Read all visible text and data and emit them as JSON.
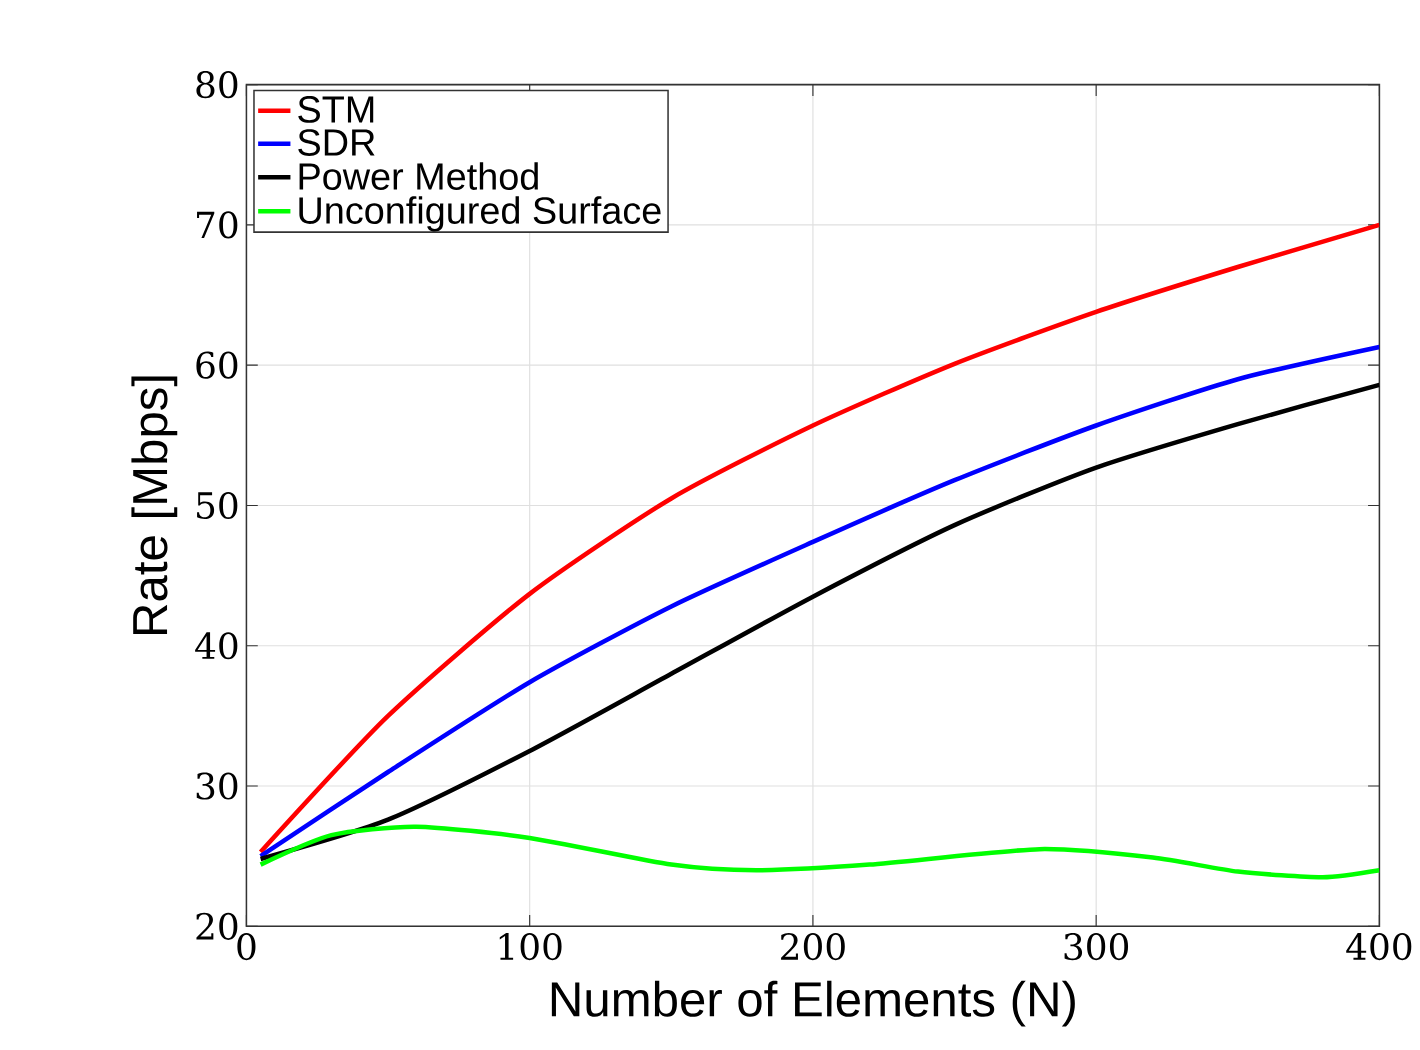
{
  "chart_data": {
    "type": "line",
    "xlabel": "Number of Elements (N)",
    "ylabel": "Rate [Mbps]",
    "x": [
      5,
      50,
      100,
      150,
      200,
      250,
      300,
      350,
      400
    ],
    "series": [
      {
        "name": "STM",
        "color": "#ff0000",
        "values": [
          25.3,
          35.0,
          43.7,
          50.5,
          55.7,
          60.1,
          63.8,
          67.0,
          70.0
        ]
      },
      {
        "name": "SDR",
        "color": "#0000ff",
        "values": [
          25.0,
          31.0,
          37.4,
          42.8,
          47.4,
          51.8,
          55.7,
          59.0,
          61.3
        ]
      },
      {
        "name": "Power Method",
        "color": "#000000",
        "values": [
          24.8,
          27.6,
          32.5,
          38.0,
          43.5,
          48.6,
          52.7,
          55.8,
          58.6
        ]
      },
      {
        "name": "Unconfigured Surface",
        "color": "#00ff00",
        "x": [
          5,
          30,
          60,
          100,
          150,
          180,
          220,
          280,
          320,
          350,
          380,
          400
        ],
        "values": [
          24.4,
          26.5,
          27.1,
          26.3,
          24.4,
          24.0,
          24.4,
          25.5,
          24.9,
          23.9,
          23.5,
          24.0
        ]
      }
    ],
    "xlim": [
      0,
      400
    ],
    "ylim": [
      20,
      80
    ],
    "xticks": [
      0,
      100,
      200,
      300,
      400
    ],
    "yticks": [
      20,
      30,
      40,
      50,
      60,
      70,
      80
    ],
    "grid": true,
    "legend": "top left",
    "line_style": "solid",
    "marker": "none"
  }
}
